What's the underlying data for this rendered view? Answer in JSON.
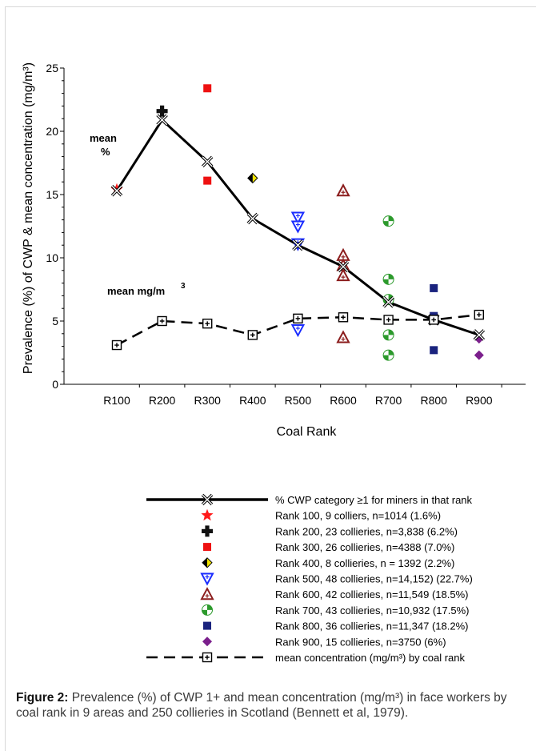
{
  "chart_data": {
    "type": "line",
    "ylabel": "Prevalence (%) of CWP & mean concentration (mg/m³)",
    "xlabel": "Coal Rank",
    "categories": [
      "R100",
      "R200",
      "R300",
      "R400",
      "R500",
      "R600",
      "R700",
      "R800",
      "R900"
    ],
    "ylim": [
      0,
      25
    ],
    "yticks": [
      "0",
      "5",
      "10",
      "15",
      "20",
      "25"
    ],
    "annotations": {
      "mean_pct": [
        "mean",
        "%"
      ],
      "mean_conc": "mean mg/m",
      "mean_conc_sup": "3"
    },
    "series": [
      {
        "name": "% CWP category >1 for miners in that rank",
        "kind": "line-x",
        "color": "#000000",
        "values": [
          15.3,
          20.9,
          17.6,
          13.1,
          11.0,
          9.3,
          6.5,
          5.1,
          3.9
        ]
      },
      {
        "name": "mean concentration (mg/m³) by coal rank",
        "kind": "dash-box",
        "color": "#000000",
        "values": [
          3.1,
          5.0,
          4.8,
          3.9,
          5.2,
          5.3,
          5.1,
          5.1,
          5.5
        ]
      }
    ],
    "scatter": [
      {
        "name": "Rank 100, 9 colliers, n=1014 (1.6%)",
        "marker": "star",
        "color": "#ff1a1a",
        "points": [
          [
            0,
            15.4
          ]
        ]
      },
      {
        "name": "Rank 200, 23 collieries, n=3,838 (6.2%)",
        "marker": "plus",
        "color": "#111111",
        "points": [
          [
            1,
            21.6
          ]
        ]
      },
      {
        "name": "Rank 300, 26 collieries, n=4388 (7.0%)",
        "marker": "square",
        "color": "#ee1111",
        "points": [
          [
            2,
            23.4
          ],
          [
            2,
            16.1
          ]
        ]
      },
      {
        "name": "Rank 400, 8 collieries, n = 1392 (2.2%)",
        "marker": "diamond-half",
        "color": "#f2e500",
        "points": [
          [
            3,
            16.3
          ]
        ]
      },
      {
        "name": "Rank 500, 48 collieries, n=14,152) (22.7%)",
        "marker": "tri-down",
        "color": "#1a2cff",
        "points": [
          [
            4,
            13.2
          ],
          [
            4,
            12.5
          ],
          [
            4,
            11.1
          ],
          [
            4,
            4.3
          ]
        ]
      },
      {
        "name": "Rank 600, 42 collieries, n=11,549 (18.5%)",
        "marker": "tri-up",
        "color": "#8b1c1c",
        "points": [
          [
            5,
            15.3
          ],
          [
            5,
            10.2
          ],
          [
            5,
            9.4
          ],
          [
            5,
            8.6
          ],
          [
            5,
            3.7
          ]
        ]
      },
      {
        "name": "Rank 700, 43 collieries, n=10,932 (17.5%)",
        "marker": "circle-q",
        "color": "#2c9a2c",
        "points": [
          [
            6,
            12.9
          ],
          [
            6,
            8.3
          ],
          [
            6,
            6.7
          ],
          [
            6,
            3.9
          ],
          [
            6,
            2.3
          ]
        ]
      },
      {
        "name": "Rank 800, 36 collieries, n=11,347 (18.2%)",
        "marker": "square",
        "color": "#1a237e",
        "points": [
          [
            7,
            7.6
          ],
          [
            7,
            5.4
          ],
          [
            7,
            2.7
          ]
        ]
      },
      {
        "name": "Rank 900, 15 collieries, n=3750 (6%)",
        "marker": "diamond",
        "color": "#7b1f8c",
        "points": [
          [
            8,
            3.6
          ],
          [
            8,
            2.3
          ]
        ]
      }
    ],
    "legend": [
      "line-x",
      "star",
      "plus",
      "square",
      "diamond-half",
      "tri-down",
      "tri-up",
      "circle-q",
      "square",
      "diamond",
      "dash-box"
    ],
    "legend_labels": [
      "% CWP category ≥1 for miners in that rank",
      "Rank 100, 9 colliers, n=1014 (1.6%)",
      "Rank 200, 23 collieries, n=3,838 (6.2%)",
      "Rank 300, 26 collieries, n=4388 (7.0%)",
      "Rank 400, 8 collieries, n = 1392 (2.2%)",
      "Rank 500, 48 collieries, n=14,152) (22.7%)",
      "Rank 600, 42 collieries, n=11,549 (18.5%)",
      "Rank 700, 43 collieries, n=10,932 (17.5%)",
      "Rank 800, 36 collieries, n=11,347 (18.2%)",
      "Rank 900, 15 collieries, n=3750 (6%)",
      "mean concentration (mg/m³) by coal rank"
    ],
    "legend_colors": [
      "#000000",
      "#ff1a1a",
      "#111111",
      "#ee1111",
      "#f2e500",
      "#1a2cff",
      "#8b1c1c",
      "#2c9a2c",
      "#1a237e",
      "#7b1f8c",
      "#000000"
    ]
  },
  "caption": {
    "label": "Figure 2:",
    "text": "Prevalence (%) of CWP 1+ and mean concentration (mg/m³) in face workers by coal rank in 9 areas and 250 collieries in Scotland (Bennett et al, 1979)."
  }
}
